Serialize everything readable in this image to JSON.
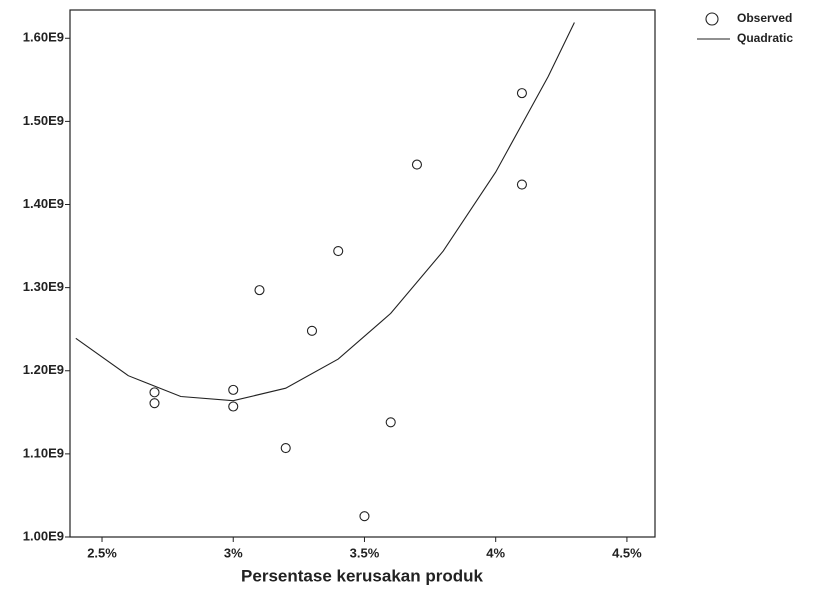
{
  "chart_data": {
    "type": "scatter",
    "x_label": "Persentase kerusakan produk",
    "xlim": [
      2.378,
      4.607
    ],
    "xticks": [
      {
        "value": 2.5,
        "label": "2.5%"
      },
      {
        "value": 3,
        "label": "3%"
      },
      {
        "value": 3.5,
        "label": "3.5%"
      },
      {
        "value": 4,
        "label": "4%"
      },
      {
        "value": 4.5,
        "label": "4.5%"
      }
    ],
    "ylim": [
      1000000000,
      1634000000
    ],
    "yticks": [
      {
        "value": 1000000000,
        "label": "1.00E9"
      },
      {
        "value": 1100000000,
        "label": "1.10E9"
      },
      {
        "value": 1200000000,
        "label": "1.20E9"
      },
      {
        "value": 1300000000,
        "label": "1.30E9"
      },
      {
        "value": 1400000000,
        "label": "1.40E9"
      },
      {
        "value": 1500000000,
        "label": "1.50E9"
      },
      {
        "value": 1600000000,
        "label": "1.60E9"
      }
    ],
    "legend": "top-right",
    "series": [
      {
        "name": "Observed",
        "type": "scatter",
        "color": "#222222",
        "x": [
          2.7,
          2.7,
          3.0,
          3.0,
          3.1,
          3.2,
          3.3,
          3.4,
          3.5,
          3.6,
          3.7,
          4.1,
          4.1
        ],
        "values": [
          1174000000,
          1161000000,
          1177000000,
          1157000000,
          1297000000,
          1107000000,
          1248000000,
          1344000000,
          1025000000,
          1138000000,
          1448000000,
          1534000000,
          1424000000
        ]
      },
      {
        "name": "Quadratic",
        "type": "line",
        "color": "#222222",
        "x": [
          2.4,
          2.6,
          2.8,
          3.0,
          3.2,
          3.4,
          3.6,
          3.8,
          4.0,
          4.2,
          4.3
        ],
        "values": [
          1239000000,
          1194000000,
          1169000000,
          1164000000,
          1179000000,
          1214000000,
          1269000000,
          1344000000,
          1439000000,
          1554000000,
          1619000000
        ]
      }
    ]
  }
}
